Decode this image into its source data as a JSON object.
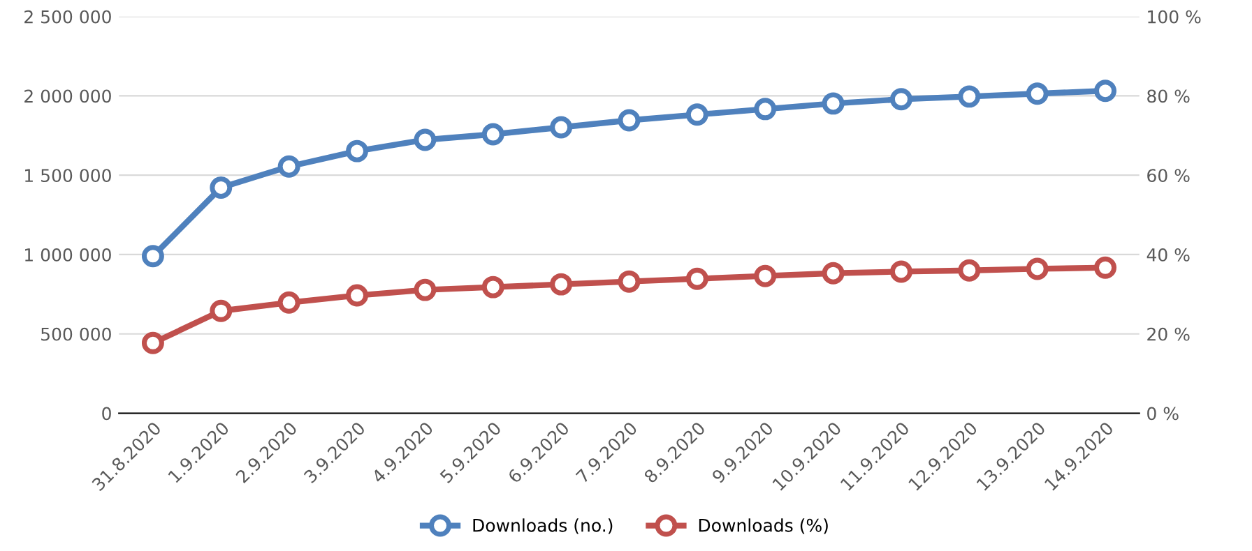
{
  "chart_data": {
    "type": "line",
    "categories": [
      "31.8.2020",
      "1.9.2020",
      "2.9.2020",
      "3.9.2020",
      "4.9.2020",
      "5.9.2020",
      "6.9.2020",
      "7.9.2020",
      "8.9.2020",
      "9.9.2020",
      "10.9.2020",
      "11.9.2020",
      "12.9.2020",
      "13.9.2020",
      "14.9.2020"
    ],
    "series": [
      {
        "name": "Downloads (no.)",
        "color": "#4f81bd",
        "values": [
          990000,
          1422000,
          1555000,
          1652000,
          1723000,
          1758000,
          1802000,
          1846000,
          1882000,
          1917000,
          1952000,
          1979000,
          1996000,
          2014000,
          2032000
        ]
      },
      {
        "name": "Downloads (%)",
        "color": "#c0504d",
        "axis": "y2",
        "values": [
          17.7,
          25.8,
          27.9,
          29.7,
          31.1,
          31.8,
          32.5,
          33.2,
          33.9,
          34.6,
          35.3,
          35.7,
          36.0,
          36.4,
          36.7
        ]
      }
    ],
    "ylim": [
      0,
      2500000
    ],
    "yticks": [
      {
        "value": 0,
        "label": "0"
      },
      {
        "value": 500000,
        "label": "500 000"
      },
      {
        "value": 1000000,
        "label": "1 000 000"
      },
      {
        "value": 1500000,
        "label": "1 500 000"
      },
      {
        "value": 2000000,
        "label": "2 000 000"
      },
      {
        "value": 2500000,
        "label": "2 500 000"
      }
    ],
    "y2lim": [
      0,
      100
    ],
    "y2ticks": [
      {
        "value": 0,
        "label": "0 %"
      },
      {
        "value": 20,
        "label": "20 %"
      },
      {
        "value": 40,
        "label": "40 %"
      },
      {
        "value": 60,
        "label": "60 %"
      },
      {
        "value": 80,
        "label": "80 %"
      },
      {
        "value": 100,
        "label": "100 %"
      }
    ],
    "grid": "y",
    "legend": "bottom",
    "marker": "circle",
    "line_style": "solid"
  }
}
